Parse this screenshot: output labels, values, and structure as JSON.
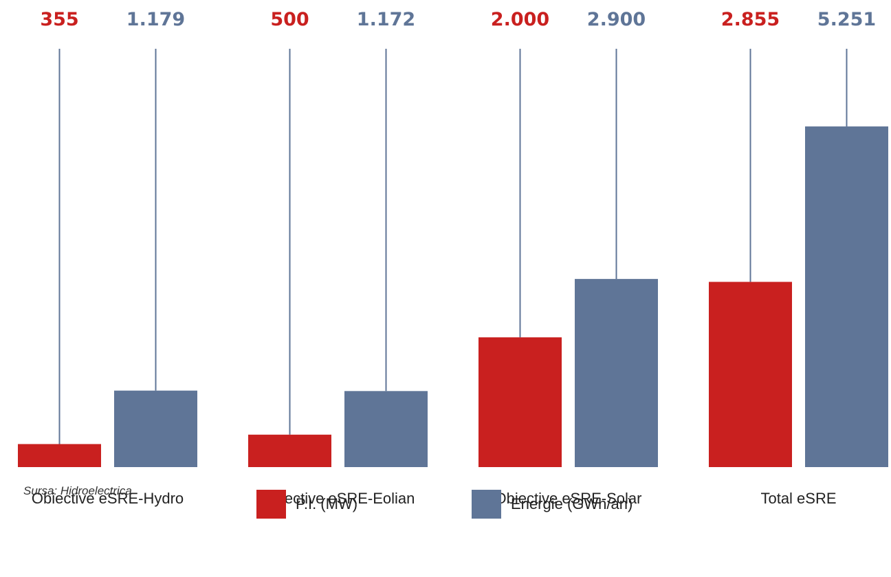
{
  "colors": {
    "pi": "#c9201f",
    "energie": "#5f7597",
    "lines": "#5f7597",
    "text": "#222222"
  },
  "source": "Sursa: Hidroelectrica",
  "legend": {
    "pi_label": "P.I. (MW)",
    "energie_label": "Energie (GWh/an)"
  },
  "chart_data": {
    "type": "bar",
    "categories": [
      "Obiective eSRE-Hydro",
      "Obiective eSRE-Eolian",
      "Obiective eSRE-Solar",
      "Total eSRE"
    ],
    "series": [
      {
        "name": "P.I. (MW)",
        "color": "#c9201f",
        "values": [
          355,
          500,
          2000,
          2855
        ],
        "labels": [
          "355",
          "500",
          "2.000",
          "2.855"
        ]
      },
      {
        "name": "Energie (GWh/an)",
        "color": "#5f7597",
        "values": [
          1179,
          1172,
          2900,
          5251
        ],
        "labels": [
          "1.179",
          "1.172",
          "2.900",
          "5.251"
        ]
      }
    ],
    "ylim": [
      0,
      7200
    ],
    "grid": false,
    "legend_position": "bottom"
  }
}
